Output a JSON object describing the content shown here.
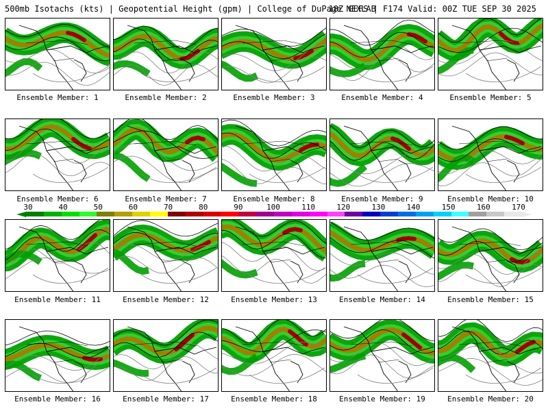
{
  "header": {
    "title": "500mb Isotachs (kts) | Geopotential Height (gpm) | College of DuPage NEXLAB",
    "run_info": "18Z GEFS | F174 Valid: 00Z TUE SEP 30 2025"
  },
  "colorbar": {
    "tick_labels": [
      "30",
      "40",
      "50",
      "60",
      "70",
      "80",
      "90",
      "100",
      "110",
      "120",
      "130",
      "140",
      "150",
      "160",
      "170"
    ],
    "colors": [
      "#007f00",
      "#00b200",
      "#00e000",
      "#2aff2a",
      "#7f7f00",
      "#b0a000",
      "#e0d000",
      "#ffff00",
      "#800000",
      "#b00000",
      "#d80000",
      "#ff0000",
      "#c00040",
      "#a0008c",
      "#c000c0",
      "#e000e0",
      "#ff00ff",
      "#ff40ff",
      "#7000a0",
      "#0000c0",
      "#0040d0",
      "#0070e0",
      "#00a0f0",
      "#00d0ff",
      "#40ffff",
      "#a0a0a0",
      "#c8c8c8",
      "#e8e8e8"
    ]
  },
  "map_colors": {
    "outline": "#000000",
    "contour": "#808080",
    "wind_light": "#00a000",
    "wind_mid": "#30d030",
    "wind_strong": "#a08000",
    "wind_core": "#a00000"
  },
  "panels": [
    {
      "label": "Ensemble Member: 1"
    },
    {
      "label": "Ensemble Member: 2"
    },
    {
      "label": "Ensemble Member: 3"
    },
    {
      "label": "Ensemble Member: 4"
    },
    {
      "label": "Ensemble Member: 5"
    },
    {
      "label": "Ensemble Member: 6"
    },
    {
      "label": "Ensemble Member: 7"
    },
    {
      "label": "Ensemble Member: 8"
    },
    {
      "label": "Ensemble Member: 9"
    },
    {
      "label": "Ensemble Member: 10"
    },
    {
      "label": "Ensemble Member: 11"
    },
    {
      "label": "Ensemble Member: 12"
    },
    {
      "label": "Ensemble Member: 13"
    },
    {
      "label": "Ensemble Member: 14"
    },
    {
      "label": "Ensemble Member: 15"
    },
    {
      "label": "Ensemble Member: 16"
    },
    {
      "label": "Ensemble Member: 17"
    },
    {
      "label": "Ensemble Member: 18"
    },
    {
      "label": "Ensemble Member: 19"
    },
    {
      "label": "Ensemble Member: 20"
    }
  ]
}
